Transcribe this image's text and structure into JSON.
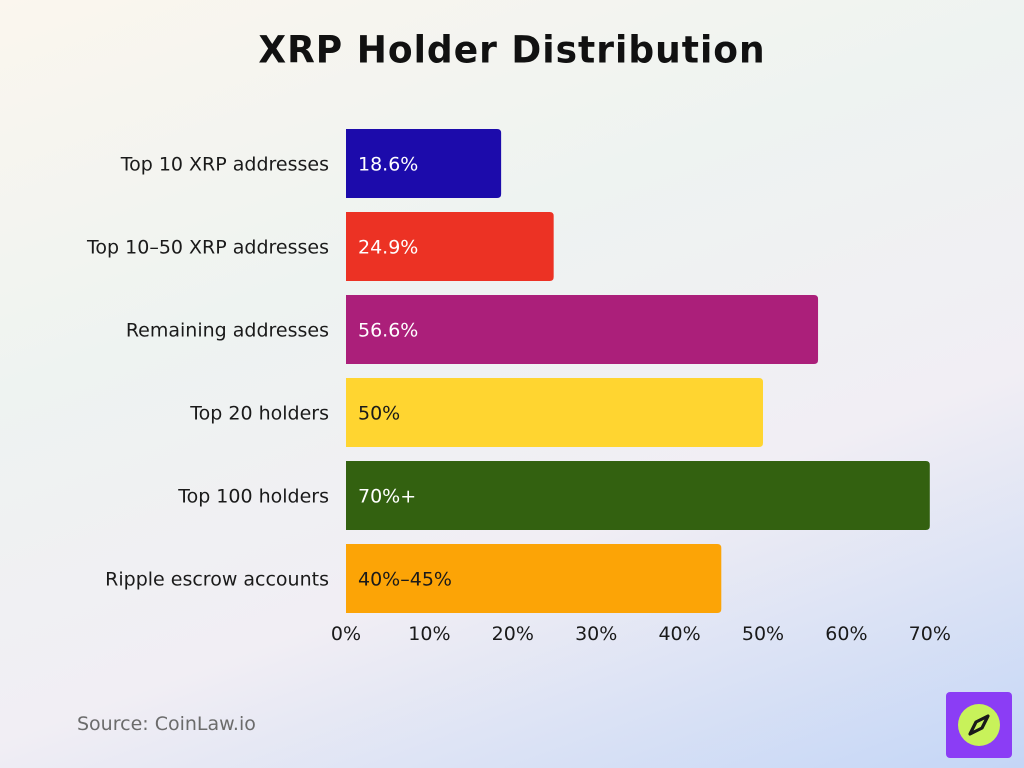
{
  "title": "XRP Holder Distribution",
  "source": "Source: CoinLaw.io",
  "chart_data": {
    "type": "bar",
    "orientation": "horizontal",
    "title": "XRP Holder Distribution",
    "categories": [
      "Top 10 XRP addresses",
      "Top 10–50 XRP addresses",
      "Remaining addresses",
      "Top 20 holders",
      "Top 100 holders",
      "Ripple escrow accounts"
    ],
    "values": [
      18.6,
      24.9,
      56.6,
      50,
      70,
      45
    ],
    "labels": [
      "18.6%",
      "24.9%",
      "56.6%",
      "50%",
      "70%+",
      "40%–45%"
    ],
    "colors": [
      "#1c0bab",
      "#ec3224",
      "#ab1f7a",
      "#ffd530",
      "#336110",
      "#fca406"
    ],
    "label_colors": [
      "#ffffff",
      "#ffffff",
      "#ffffff",
      "#1a1a1a",
      "#ffffff",
      "#1a1a1a"
    ],
    "xlim": [
      0,
      70
    ],
    "xticks": [
      0,
      10,
      20,
      30,
      40,
      50,
      60,
      70
    ],
    "xtick_labels": [
      "0%",
      "10%",
      "20%",
      "30%",
      "40%",
      "50%",
      "60%",
      "70%"
    ],
    "xlabel": "",
    "ylabel": "",
    "grid": false,
    "legend": "none"
  },
  "logo": {
    "icon": "compass-icon",
    "bg_color": "#8b3df5",
    "circle_color": "#c8f25a"
  }
}
